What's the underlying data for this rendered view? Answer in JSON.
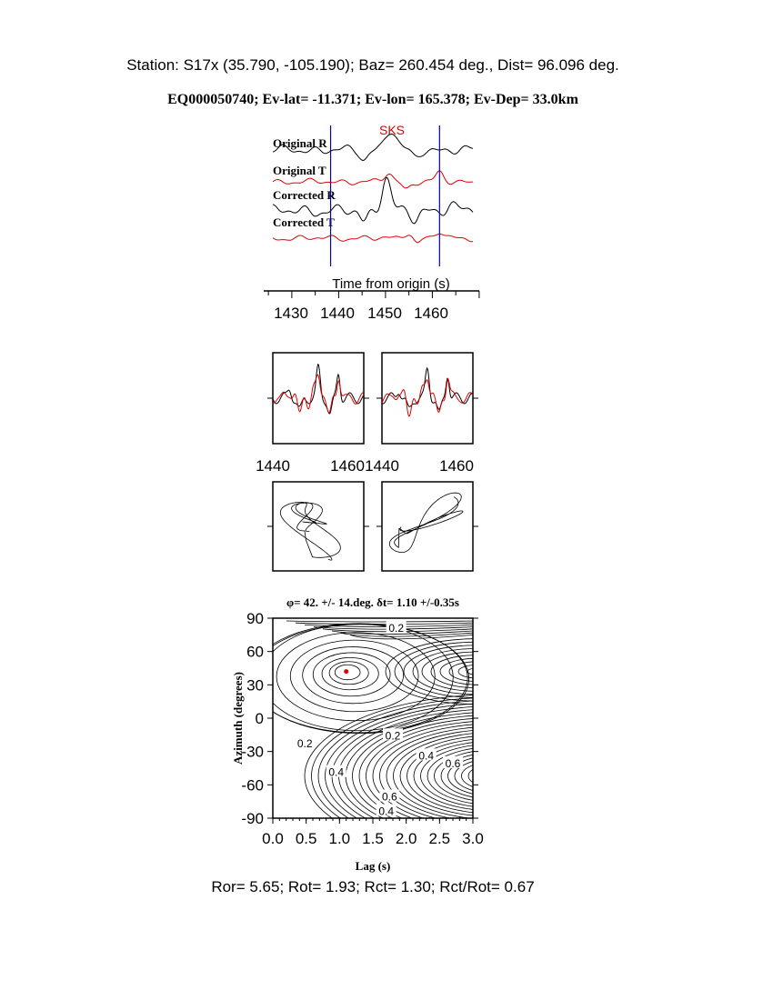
{
  "header": {
    "station_line": "Station: S17x (35.790, -105.190); Baz=  260.454 deg., Dist=   96.096 deg.",
    "event_line": "EQ000050740; Ev-lat= -11.371; Ev-lon= 165.378; Ev-Dep= 33.0km"
  },
  "footer": {
    "ratios": "Ror= 5.65; Rot= 1.93; Rct= 1.30; Rct/Rot= 0.67"
  },
  "colors": {
    "radial": "#000000",
    "transverse": "#e00000",
    "window": "#0000cc",
    "best_fit": "#e00000"
  },
  "chart_data": [
    {
      "type": "line",
      "phase_label": "SKS",
      "traces": [
        {
          "name": "Original R",
          "color": "#000000"
        },
        {
          "name": "Original T",
          "color": "#e00000"
        },
        {
          "name": "Corrected R",
          "color": "#000000"
        },
        {
          "name": "Corrected T",
          "color": "#e00000"
        }
      ],
      "xlabel": "Time from origin (s)",
      "xticks": [
        "1430",
        "1440",
        "1450",
        "1460"
      ],
      "xlim": [
        1425,
        1471
      ],
      "window": [
        1439,
        1463.5
      ]
    },
    {
      "type": "line",
      "panels": [
        "original",
        "corrected"
      ],
      "xticks": [
        "1440",
        "1460"
      ],
      "xlim": [
        1438,
        1465
      ]
    },
    {
      "type": "line",
      "panels": [
        "original particle motion",
        "corrected particle motion"
      ]
    },
    {
      "type": "heatmap",
      "title": "φ= 42. +/- 14.deg. δt= 1.10 +/-0.35s",
      "xlabel": "Lag (s)",
      "ylabel": "Azimuth (degrees)",
      "xlim": [
        0.0,
        3.0
      ],
      "ylim": [
        -90,
        90
      ],
      "xticks": [
        "0.0",
        "0.5",
        "1.0",
        "1.5",
        "2.0",
        "2.5",
        "3.0"
      ],
      "yticks": [
        "90",
        "60",
        "30",
        "0",
        "-30",
        "-60",
        "-90"
      ],
      "contour_labels": [
        {
          "text": "0.2",
          "lag": 1.85,
          "az": 82
        },
        {
          "text": "0.2",
          "lag": 0.48,
          "az": -22
        },
        {
          "text": "0.2",
          "lag": 1.8,
          "az": -15
        },
        {
          "text": "0.4",
          "lag": 2.3,
          "az": -33
        },
        {
          "text": "0.6",
          "lag": 2.7,
          "az": -40
        },
        {
          "text": "0.4",
          "lag": 0.95,
          "az": -48
        },
        {
          "text": "0.6",
          "lag": 1.75,
          "az": -70
        },
        {
          "text": "0.4",
          "lag": 1.7,
          "az": -83
        }
      ],
      "best_fit": {
        "lag": 1.1,
        "az": 42
      }
    }
  ]
}
